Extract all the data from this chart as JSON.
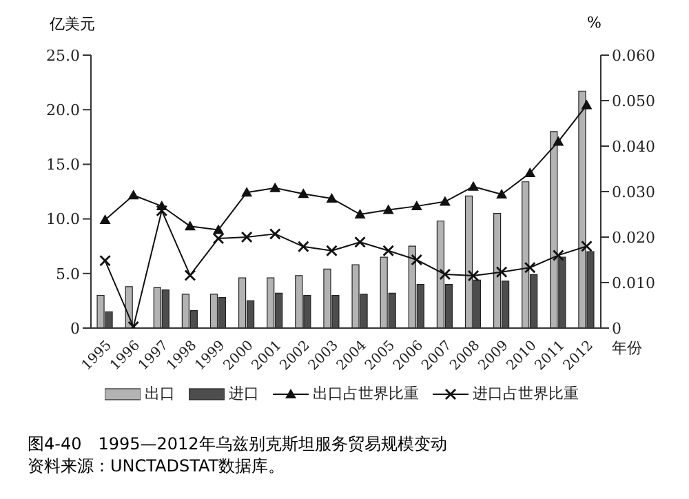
{
  "chart_data": {
    "type": "bar",
    "title": "图4-40　1995—2012年乌兹别克斯坦服务贸易规模变动",
    "annotations": [
      "资料来源：UNCTADSTAT数据库。"
    ],
    "ylabel": "亿美元",
    "y2label": "%",
    "xlabel": "年份",
    "categories": [
      "1995",
      "1996",
      "1997",
      "1998",
      "1999",
      "2000",
      "2001",
      "2002",
      "2003",
      "2004",
      "2005",
      "2006",
      "2007",
      "2008",
      "2009",
      "2010",
      "2011",
      "2012"
    ],
    "series": [
      {
        "name": "出口",
        "color": "#b3b3b3",
        "values": [
          3.0,
          3.8,
          3.7,
          3.1,
          3.1,
          4.6,
          4.6,
          4.8,
          5.4,
          5.8,
          6.5,
          7.5,
          9.8,
          12.1,
          10.5,
          13.4,
          18.0,
          21.7
        ]
      },
      {
        "name": "进口",
        "color": "#4d4d4d",
        "values": [
          1.5,
          null,
          3.5,
          1.6,
          2.8,
          2.5,
          3.2,
          3.0,
          3.0,
          3.1,
          3.2,
          4.0,
          4.0,
          4.4,
          4.3,
          4.9,
          6.5,
          7.0
        ]
      },
      {
        "name": "出口占世界比重",
        "type": "line",
        "axis": "y2",
        "marker": "triangle",
        "color": "#111111",
        "values": [
          0.0238,
          0.0292,
          0.0268,
          0.0224,
          0.0216,
          0.0298,
          0.0308,
          0.0295,
          0.0285,
          0.025,
          0.026,
          0.0268,
          0.0278,
          0.0311,
          0.0294,
          0.0341,
          0.041,
          0.049
        ]
      },
      {
        "name": "进口占世界比重",
        "type": "line",
        "axis": "y2",
        "marker": "cross",
        "color": "#111111",
        "values": [
          0.0148,
          0.0003,
          0.0258,
          0.0116,
          0.0197,
          0.02,
          0.0207,
          0.0179,
          0.017,
          0.0189,
          0.017,
          0.015,
          0.0118,
          0.0115,
          0.0123,
          0.0133,
          0.016,
          0.018
        ]
      }
    ],
    "ylim": [
      0,
      25
    ],
    "yticks": [
      0,
      {
        "value": 5,
        "label": "5.0"
      },
      {
        "value": 10,
        "label": "10.0"
      },
      {
        "value": 15,
        "label": "15.0"
      },
      {
        "value": 20,
        "label": "20.0"
      },
      {
        "value": 25,
        "label": "25.0"
      }
    ],
    "y2lim": [
      0,
      0.06
    ],
    "y2ticks": [
      0,
      {
        "value": 0.01,
        "label": "0.010"
      },
      {
        "value": 0.02,
        "label": "0.020"
      },
      {
        "value": 0.03,
        "label": "0.030"
      },
      {
        "value": 0.04,
        "label": "0.040"
      },
      {
        "value": 0.05,
        "label": "0.050"
      },
      {
        "value": 0.06,
        "label": "0.060"
      }
    ],
    "legend": "bottom",
    "grid": false
  }
}
